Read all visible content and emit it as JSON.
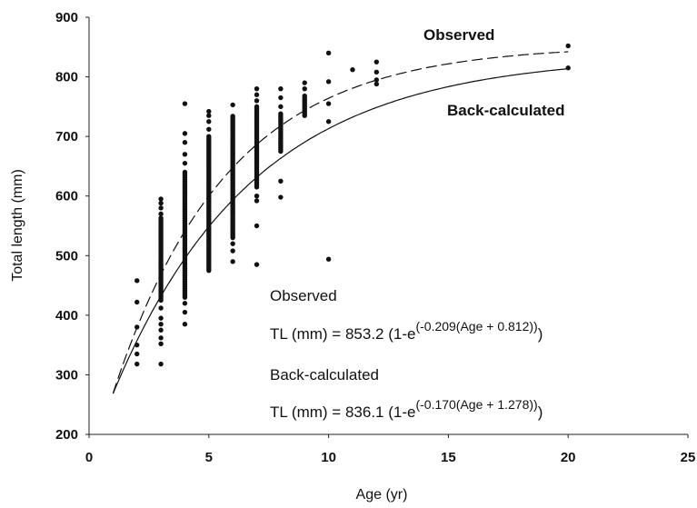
{
  "chart_data": {
    "type": "scatter",
    "xlabel": "Age (yr)",
    "ylabel": "Total length (mm)",
    "xlim": [
      0,
      25
    ],
    "ylim": [
      200,
      900
    ],
    "xticks": [
      "0",
      "5",
      "10",
      "15",
      "20",
      "25"
    ],
    "yticks": [
      "200",
      "300",
      "400",
      "500",
      "600",
      "700",
      "800",
      "900"
    ],
    "grid": false,
    "curves": [
      {
        "label": "Observed",
        "style": "dashed",
        "Linf": 853.2,
        "k": 0.209,
        "t0": -0.812,
        "x_range": [
          1,
          20
        ]
      },
      {
        "label": "Back-calculated",
        "style": "solid",
        "Linf": 836.1,
        "k": 0.17,
        "t0": -1.278,
        "x_range": [
          1,
          20
        ]
      }
    ],
    "equations": [
      {
        "title": "Observed",
        "prefix": "TL (mm) = 853.2 (1-e",
        "exponent": "(-0.209(Age + 0.812))",
        "suffix": ")"
      },
      {
        "title": "Back-calculated",
        "prefix": "TL (mm) = 836.1 (1-e",
        "exponent": "(-0.170(Age + 1.278))",
        "suffix": ")"
      }
    ],
    "points": [
      {
        "x": 2,
        "y": [
          458,
          422,
          380,
          350,
          335,
          318
        ]
      },
      {
        "x": 3,
        "ranges": [
          [
            425,
            565
          ]
        ],
        "y": [
          595,
          588,
          580,
          570,
          412,
          395,
          385,
          375,
          362,
          352,
          318
        ]
      },
      {
        "x": 4,
        "ranges": [
          [
            430,
            640
          ]
        ],
        "y": [
          755,
          705,
          690,
          670,
          655,
          420,
          405,
          385
        ]
      },
      {
        "x": 5,
        "ranges": [
          [
            475,
            700
          ]
        ],
        "y": [
          742,
          735,
          725,
          712
        ]
      },
      {
        "x": 6,
        "ranges": [
          [
            530,
            735
          ]
        ],
        "y": [
          753,
          520,
          508,
          490
        ]
      },
      {
        "x": 7,
        "ranges": [
          [
            615,
            750
          ]
        ],
        "y": [
          780,
          770,
          760,
          600,
          592,
          550,
          485
        ]
      },
      {
        "x": 8,
        "ranges": [
          [
            675,
            740
          ]
        ],
        "y": [
          780,
          765,
          750,
          625,
          598
        ]
      },
      {
        "x": 9,
        "ranges": [
          [
            735,
            770
          ]
        ],
        "y": [
          790,
          780
        ]
      },
      {
        "x": 10,
        "y": [
          840,
          792,
          755,
          725,
          494
        ]
      },
      {
        "x": 11,
        "y": [
          812
        ]
      },
      {
        "x": 12,
        "y": [
          825,
          808,
          795,
          788
        ]
      },
      {
        "x": 20,
        "y": [
          852,
          815
        ]
      }
    ]
  }
}
